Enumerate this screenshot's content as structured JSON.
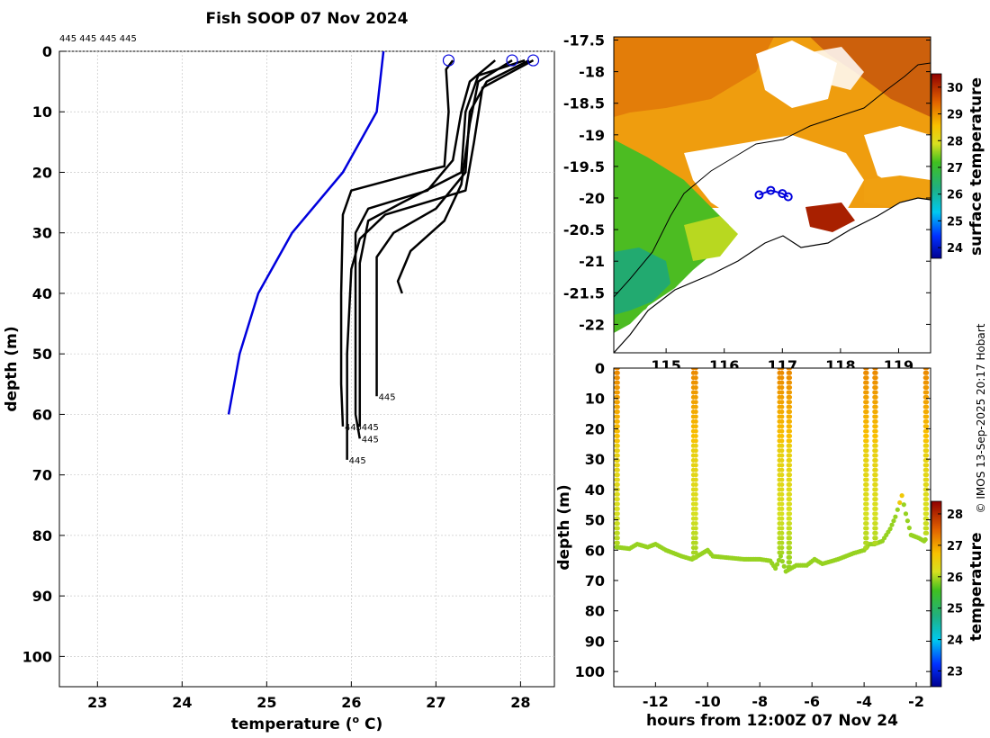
{
  "title": "Fish SOOP 07 Nov 2024",
  "header_ids": "445 445 445 445",
  "credit": "© IMOS 13-Sep-2025 20:17 Hobart",
  "colors": {
    "profile_black": "#000000",
    "profile_blue": "#0000dd",
    "grid": "#c8c8c8",
    "map_land": "#ffffff"
  },
  "chart_data": [
    {
      "type": "line",
      "name": "temperature-depth-profiles",
      "xlabel": "temperature (o C)",
      "ylabel": "depth (m)",
      "xlim": [
        22.55,
        28.4
      ],
      "ylim": [
        105,
        0
      ],
      "xticks": [
        23,
        24,
        25,
        26,
        27,
        28
      ],
      "yticks": [
        0,
        10,
        20,
        30,
        40,
        50,
        60,
        70,
        80,
        90,
        100
      ],
      "grid": true,
      "climatology": {
        "name": "reference",
        "color": "#0000dd",
        "points": [
          [
            26.38,
            0
          ],
          [
            26.3,
            10
          ],
          [
            25.9,
            20
          ],
          [
            25.3,
            30
          ],
          [
            24.9,
            40
          ],
          [
            24.68,
            50
          ],
          [
            24.55,
            60
          ]
        ]
      },
      "series": [
        {
          "name": "profile-1",
          "end_label": "445",
          "points": [
            [
              27.2,
              1.5
            ],
            [
              27.12,
              3
            ],
            [
              27.15,
              10
            ],
            [
              27.1,
              19
            ],
            [
              26.8,
              20
            ],
            [
              26.0,
              23
            ],
            [
              25.9,
              27
            ],
            [
              25.88,
              40
            ],
            [
              25.88,
              55
            ],
            [
              25.9,
              62
            ]
          ]
        },
        {
          "name": "profile-2",
          "end_label": "445",
          "points": [
            [
              27.7,
              1.5
            ],
            [
              27.4,
              5
            ],
            [
              27.3,
              10
            ],
            [
              27.2,
              18
            ],
            [
              26.9,
              23
            ],
            [
              26.2,
              26
            ],
            [
              26.05,
              30
            ],
            [
              26.05,
              45
            ],
            [
              26.05,
              60
            ],
            [
              26.1,
              64
            ]
          ]
        },
        {
          "name": "profile-3",
          "end_label": "445",
          "points": [
            [
              28.05,
              1.5
            ],
            [
              27.5,
              4
            ],
            [
              27.35,
              10
            ],
            [
              27.3,
              20
            ],
            [
              26.6,
              25
            ],
            [
              26.2,
              28
            ],
            [
              26.1,
              35
            ],
            [
              26.1,
              55
            ],
            [
              26.1,
              62
            ]
          ]
        },
        {
          "name": "profile-4",
          "end_label": "445",
          "points": [
            [
              28.1,
              1.5
            ],
            [
              27.6,
              5
            ],
            [
              27.4,
              10
            ],
            [
              27.35,
              20
            ],
            [
              27.0,
              26
            ],
            [
              26.5,
              30
            ],
            [
              26.3,
              34
            ],
            [
              26.3,
              57
            ]
          ]
        },
        {
          "name": "profile-5",
          "end_label": "",
          "points": [
            [
              27.9,
              1.5
            ],
            [
              27.5,
              5
            ],
            [
              27.4,
              12
            ],
            [
              27.3,
              22
            ],
            [
              27.1,
              28
            ],
            [
              26.7,
              33
            ],
            [
              26.55,
              38
            ],
            [
              26.6,
              40
            ]
          ]
        },
        {
          "name": "profile-6",
          "end_label": "445",
          "points": [
            [
              28.15,
              1.5
            ],
            [
              27.55,
              6
            ],
            [
              27.45,
              15
            ],
            [
              27.35,
              23
            ],
            [
              26.4,
              27
            ],
            [
              26.1,
              31
            ],
            [
              26.0,
              36
            ],
            [
              25.95,
              50
            ],
            [
              25.95,
              66
            ],
            [
              25.95,
              67.5
            ]
          ]
        }
      ],
      "top_markers_temperature": [
        27.15,
        27.9,
        28.15
      ]
    },
    {
      "type": "heatmap",
      "name": "sea-surface-temperature-map",
      "xticks": [
        115,
        116,
        117,
        118,
        119
      ],
      "yticks": [
        -17.5,
        -18,
        -18.5,
        -19,
        -19.5,
        -20,
        -20.5,
        -21,
        -21.5,
        -22
      ],
      "xlim": [
        114.1,
        119.55
      ],
      "ylim": [
        -22.45,
        -17.45
      ],
      "colorbar": {
        "label": "surface temperature",
        "ticks": [
          30,
          29,
          28,
          27,
          26,
          25,
          24
        ],
        "range": [
          23.6,
          30.5
        ]
      },
      "track_points": [
        [
          116.6,
          -19.95
        ],
        [
          116.8,
          -19.88
        ],
        [
          117.0,
          -19.93
        ],
        [
          117.1,
          -19.98
        ]
      ]
    },
    {
      "type": "scatter",
      "name": "depth-time-section",
      "xlabel": "hours from 12:00Z 07 Nov 24",
      "ylabel": "depth (m)",
      "xlim": [
        -13.6,
        -1.45
      ],
      "ylim": [
        105,
        0
      ],
      "xticks": [
        -12,
        -10,
        -8,
        -6,
        -4,
        -2
      ],
      "yticks": [
        0,
        10,
        20,
        30,
        40,
        50,
        60,
        70,
        80,
        90,
        100
      ],
      "colorbar": {
        "label": "temperature",
        "ticks": [
          28,
          27,
          26,
          25,
          24,
          23
        ],
        "range": [
          22.5,
          28.4
        ]
      },
      "bottom_depth": [
        [
          -13.5,
          59
        ],
        [
          -13.0,
          59.5
        ],
        [
          -12.7,
          58
        ],
        [
          -12.3,
          59
        ],
        [
          -12,
          58
        ],
        [
          -11.6,
          60
        ],
        [
          -11.0,
          62
        ],
        [
          -10.6,
          63
        ],
        [
          -10.4,
          62
        ],
        [
          -10.2,
          61
        ],
        [
          -10.0,
          60
        ],
        [
          -9.8,
          62
        ],
        [
          -9.2,
          62.5
        ],
        [
          -8.6,
          63
        ],
        [
          -8.0,
          63
        ],
        [
          -7.6,
          63.5
        ],
        [
          -7.4,
          66
        ],
        [
          -7.2,
          62
        ],
        [
          -7.0,
          67
        ],
        [
          -6.6,
          65
        ],
        [
          -6.2,
          65
        ],
        [
          -5.9,
          63
        ],
        [
          -5.6,
          64.5
        ],
        [
          -5.0,
          63
        ],
        [
          -4.4,
          61
        ],
        [
          -4.0,
          60
        ],
        [
          -3.8,
          58
        ],
        [
          -3.6,
          58
        ],
        [
          -3.3,
          57
        ],
        [
          -3.0,
          53
        ],
        [
          -2.8,
          49
        ],
        [
          -2.55,
          42
        ],
        [
          -2.4,
          48
        ],
        [
          -2.2,
          55
        ],
        [
          -1.9,
          56
        ],
        [
          -1.7,
          57
        ],
        [
          -1.6,
          56
        ]
      ],
      "casts": [
        [
          -13.5,
          -13.45
        ],
        [
          -10.55,
          -10.45
        ],
        [
          -7.25,
          -7.15
        ],
        [
          -6.9,
          -6.85
        ],
        [
          -3.95,
          -3.9
        ],
        [
          -3.6,
          -3.55
        ],
        [
          -1.65,
          -1.6
        ]
      ]
    }
  ]
}
